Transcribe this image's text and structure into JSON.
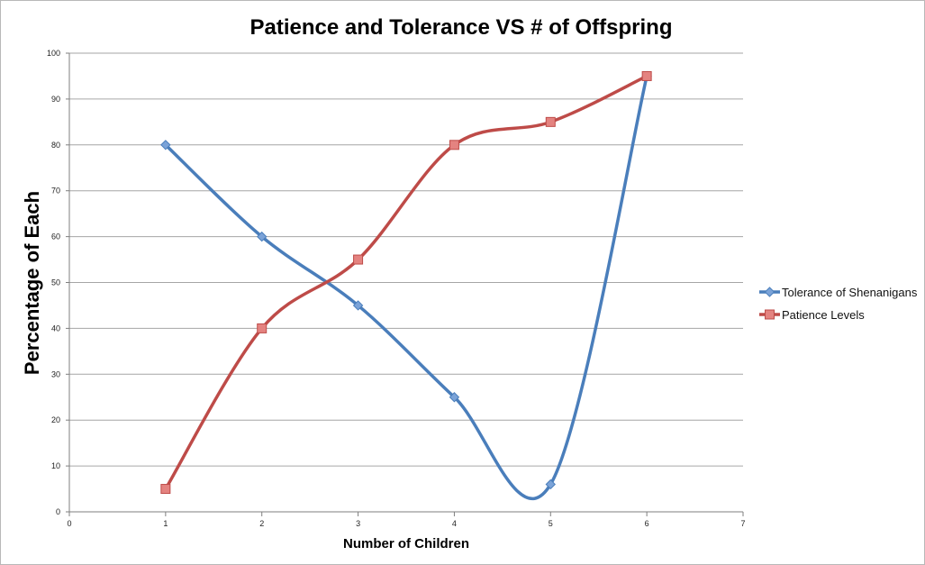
{
  "chart_data": {
    "type": "line",
    "title": "Patience and Tolerance VS # of Offspring",
    "xlabel": "Number of Children",
    "ylabel": "Percentage of Each",
    "xlim": [
      0,
      7
    ],
    "ylim": [
      0,
      100
    ],
    "x_ticks": [
      "0",
      "1",
      "2",
      "3",
      "4",
      "5",
      "6",
      "7"
    ],
    "y_ticks": [
      "0",
      "10",
      "20",
      "30",
      "40",
      "50",
      "60",
      "70",
      "80",
      "90",
      "100"
    ],
    "grid": true,
    "smooth": true,
    "legend_position": "right",
    "series": [
      {
        "name": "Tolerance of Shenanigans",
        "color": "#4a7ebb",
        "marker": "diamond",
        "x": [
          1,
          2,
          3,
          4,
          5,
          6
        ],
        "y": [
          80,
          60,
          45,
          25,
          6,
          95
        ]
      },
      {
        "name": "Patience Levels",
        "color": "#be4b48",
        "marker": "square",
        "x": [
          1,
          2,
          3,
          4,
          5,
          6
        ],
        "y": [
          5,
          40,
          55,
          80,
          85,
          95
        ]
      }
    ]
  }
}
